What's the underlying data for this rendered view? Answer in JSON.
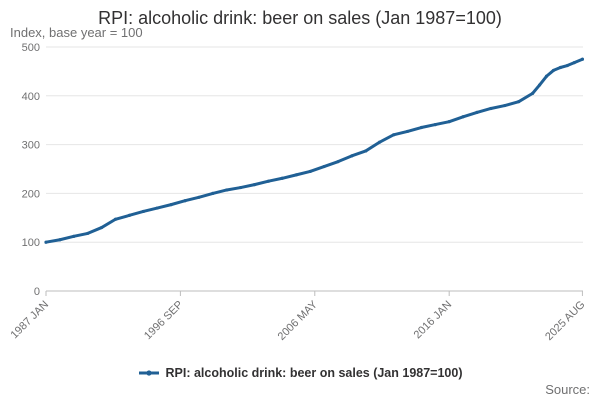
{
  "chart_data": {
    "type": "line",
    "title": "RPI: alcoholic drink: beer on sales (Jan 1987=100)",
    "subtitle": "Index, base year = 100",
    "ylim": [
      0,
      500
    ],
    "yticks": [
      0,
      100,
      200,
      300,
      400,
      500
    ],
    "xlim": [
      1987.0,
      2025.625
    ],
    "xticks": [
      {
        "label": "1987 JAN",
        "x": 1987.0
      },
      {
        "label": "1996 SEP",
        "x": 1996.667
      },
      {
        "label": "2006 MAY",
        "x": 2006.333
      },
      {
        "label": "2016 JAN",
        "x": 2016.0
      },
      {
        "label": "2025 AUG",
        "x": 2025.583
      }
    ],
    "grid": true,
    "legend_position": "bottom",
    "series": [
      {
        "name": "RPI: alcoholic drink: beer on sales (Jan 1987=100)",
        "color": "#206095",
        "points": [
          [
            1987.0,
            100
          ],
          [
            1988.0,
            105
          ],
          [
            1989.0,
            112
          ],
          [
            1990.0,
            118
          ],
          [
            1991.0,
            130
          ],
          [
            1992.0,
            147
          ],
          [
            1993.0,
            155
          ],
          [
            1994.0,
            163
          ],
          [
            1995.0,
            170
          ],
          [
            1996.0,
            177
          ],
          [
            1997.0,
            185
          ],
          [
            1998.0,
            192
          ],
          [
            1999.0,
            200
          ],
          [
            2000.0,
            207
          ],
          [
            2001.0,
            212
          ],
          [
            2002.0,
            218
          ],
          [
            2003.0,
            225
          ],
          [
            2004.0,
            231
          ],
          [
            2005.0,
            238
          ],
          [
            2006.0,
            245
          ],
          [
            2007.0,
            255
          ],
          [
            2008.0,
            265
          ],
          [
            2009.0,
            277
          ],
          [
            2010.0,
            287
          ],
          [
            2011.0,
            305
          ],
          [
            2012.0,
            320
          ],
          [
            2013.0,
            327
          ],
          [
            2014.0,
            335
          ],
          [
            2015.0,
            341
          ],
          [
            2016.0,
            347
          ],
          [
            2017.0,
            357
          ],
          [
            2018.0,
            366
          ],
          [
            2019.0,
            374
          ],
          [
            2020.0,
            380
          ],
          [
            2021.0,
            388
          ],
          [
            2022.0,
            405
          ],
          [
            2022.5,
            422
          ],
          [
            2023.0,
            440
          ],
          [
            2023.5,
            452
          ],
          [
            2024.0,
            458
          ],
          [
            2024.5,
            462
          ],
          [
            2025.0,
            468
          ],
          [
            2025.583,
            475
          ]
        ]
      }
    ],
    "source_label": "Source:"
  }
}
